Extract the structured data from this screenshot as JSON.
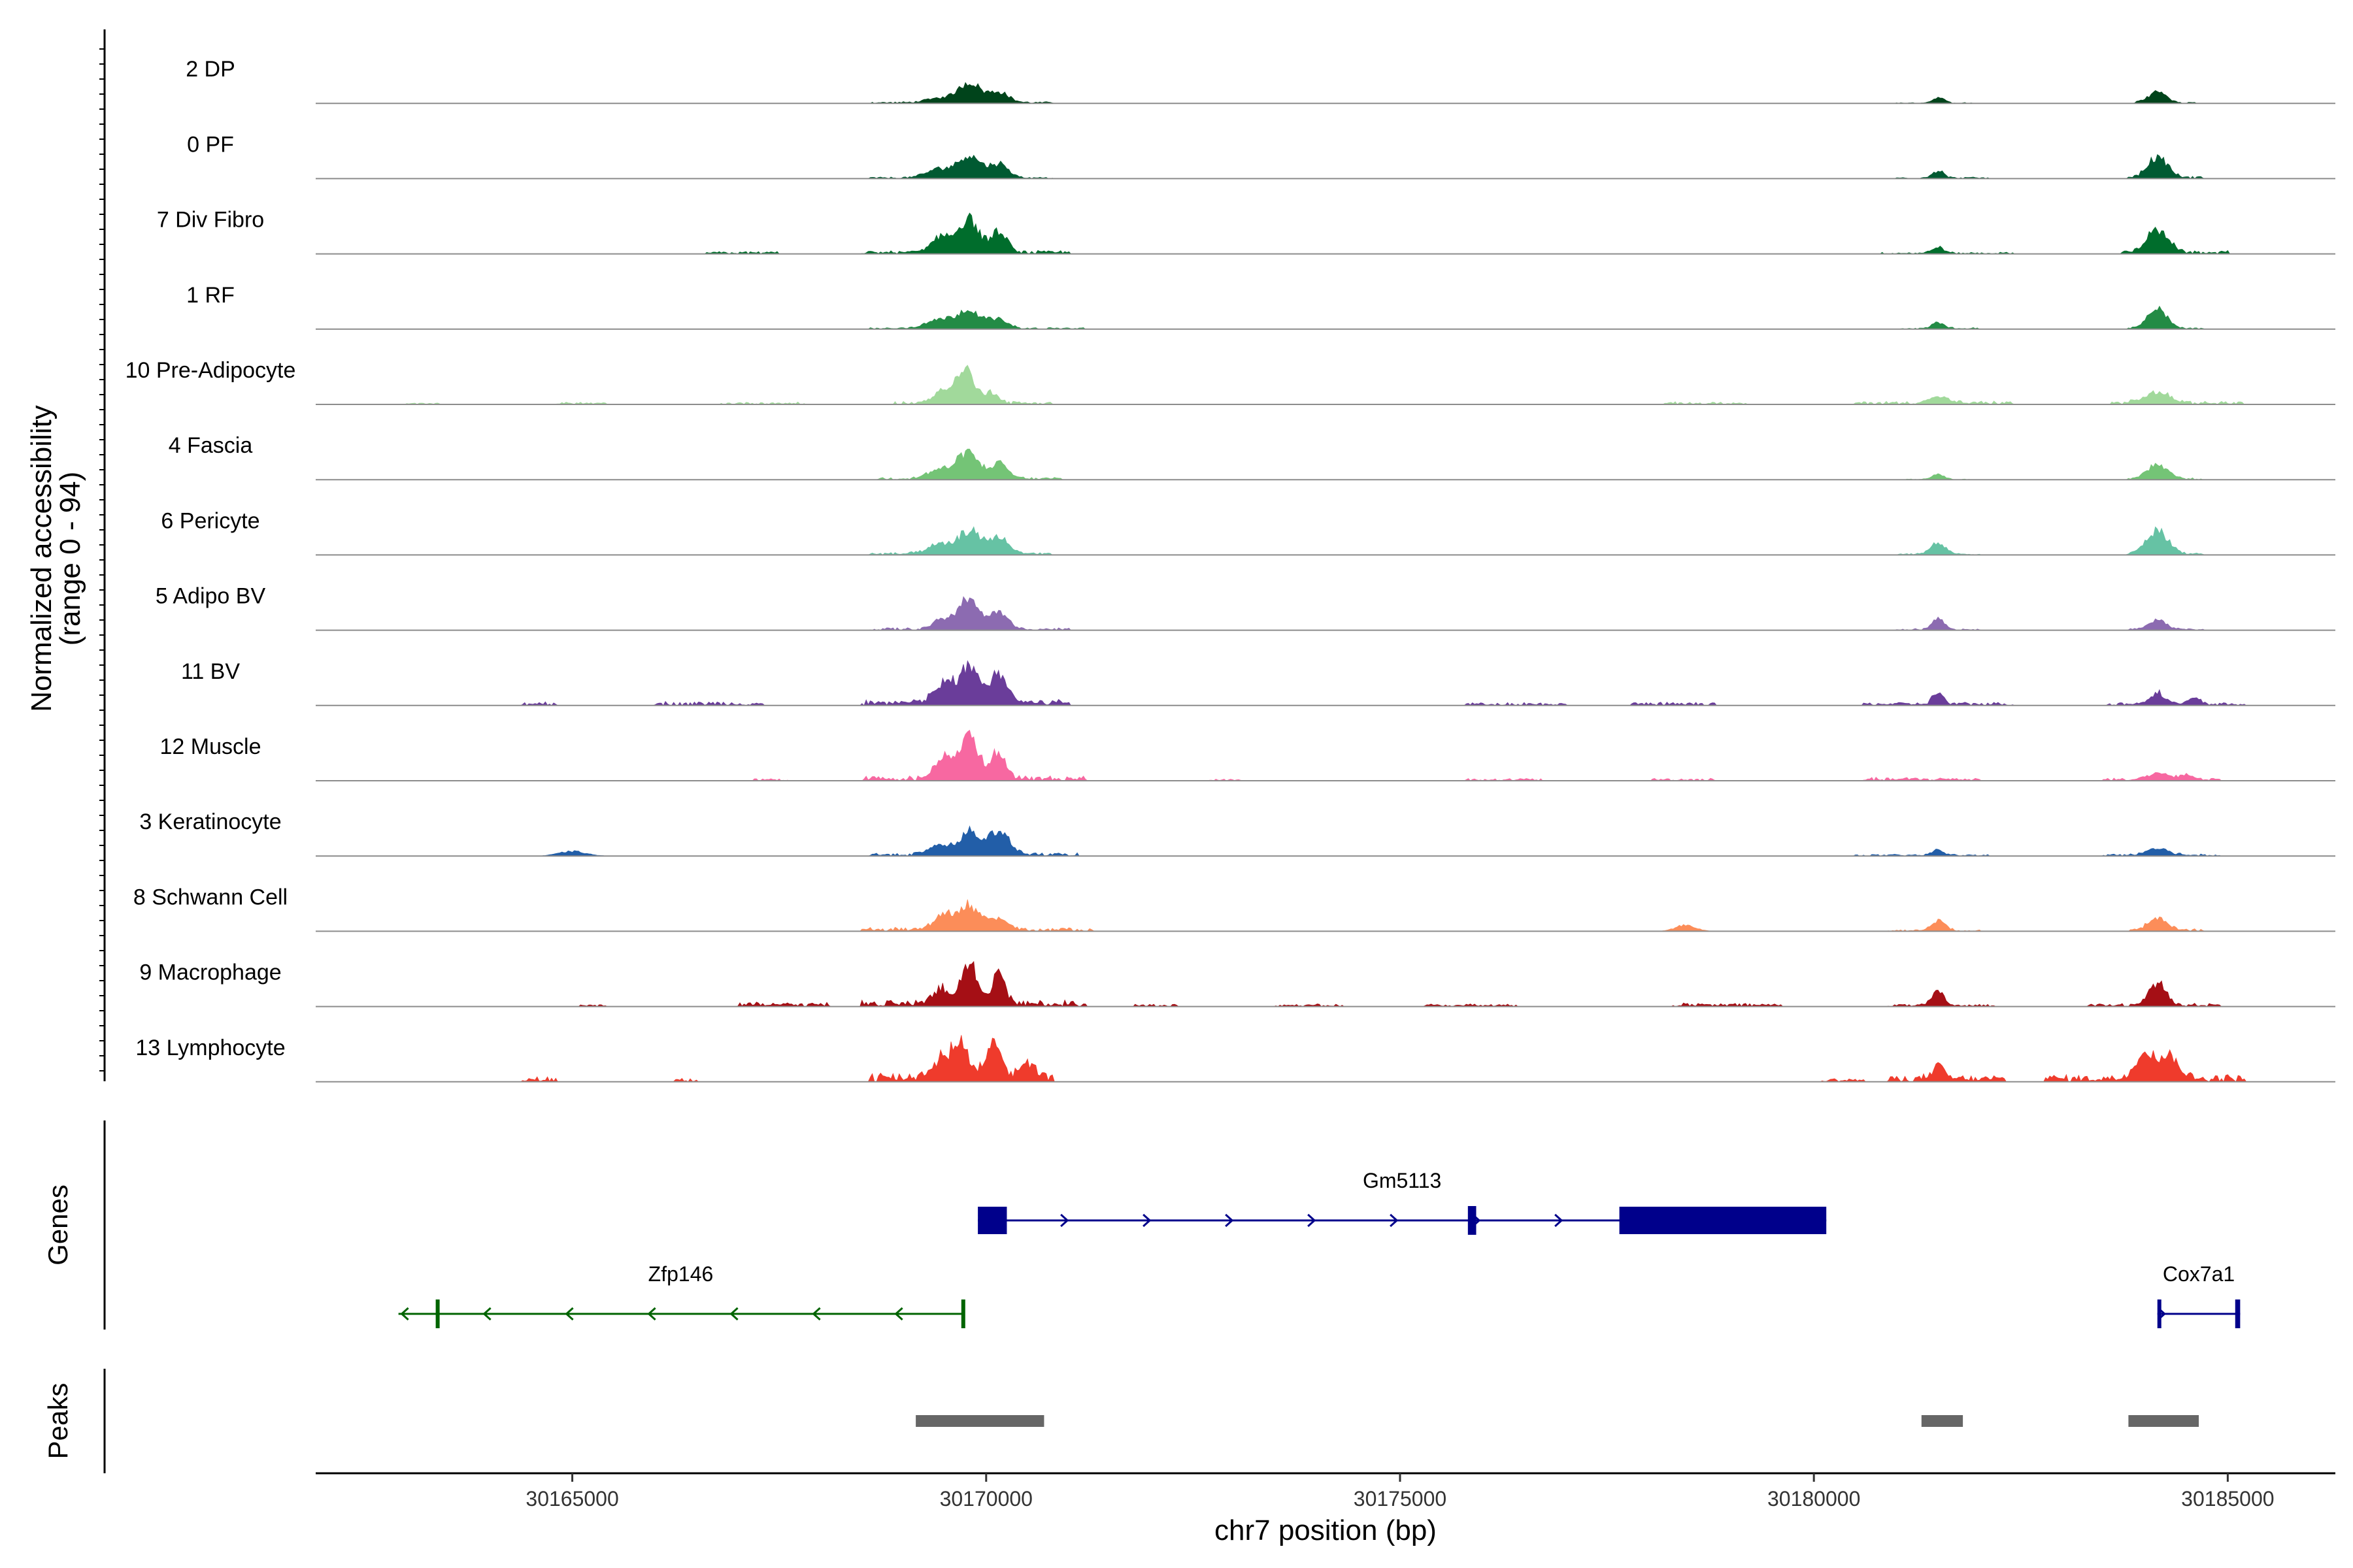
{
  "chart_data": {
    "type": "area",
    "title": "",
    "ylabel_line1": "Normalized accessibility",
    "ylabel_line2": "(range 0 - 94)",
    "yrange": [
      0,
      94
    ],
    "xlabel": "chr7 position (bp)",
    "xlim": [
      30161900,
      30186300
    ],
    "xticks": [
      {
        "value": 30165000,
        "label": "30165000"
      },
      {
        "value": 30170000,
        "label": "30170000"
      },
      {
        "value": 30175000,
        "label": "30175000"
      },
      {
        "value": 30180000,
        "label": "30180000"
      },
      {
        "value": 30185000,
        "label": "30185000"
      }
    ],
    "tracks": [
      {
        "name": "2 DP",
        "color": "#00441b",
        "peaks": [
          [
            30169450,
            6,
            160
          ],
          [
            30169800,
            26,
            130
          ],
          [
            30170150,
            14,
            120
          ],
          [
            30181500,
            7,
            70
          ],
          [
            30184150,
            14,
            110
          ]
        ],
        "noise": [
          [
            30168600,
            30170800,
            2
          ],
          [
            30181000,
            30181900,
            1
          ],
          [
            30183900,
            30184600,
            2
          ]
        ]
      },
      {
        "name": "0 PF",
        "color": "#005a32",
        "peaks": [
          [
            30169450,
            12,
            160
          ],
          [
            30169800,
            28,
            130
          ],
          [
            30170150,
            18,
            120
          ],
          [
            30181500,
            9,
            70
          ],
          [
            30184150,
            26,
            120
          ]
        ],
        "noise": [
          [
            30168600,
            30170800,
            2
          ],
          [
            30181000,
            30182100,
            2
          ],
          [
            30183800,
            30184700,
            3
          ]
        ]
      },
      {
        "name": "7 Div Fibro",
        "color": "#006d2c",
        "peaks": [
          [
            30169500,
            22,
            140
          ],
          [
            30169800,
            42,
            110
          ],
          [
            30170150,
            26,
            100
          ],
          [
            30181500,
            8,
            70
          ],
          [
            30184150,
            28,
            130
          ]
        ],
        "noise": [
          [
            30166600,
            30167500,
            3
          ],
          [
            30168500,
            30171000,
            4
          ],
          [
            30180800,
            30182400,
            2
          ],
          [
            30183700,
            30185000,
            4
          ]
        ]
      },
      {
        "name": "1 RF",
        "color": "#238b45",
        "peaks": [
          [
            30169450,
            12,
            170
          ],
          [
            30169800,
            24,
            130
          ],
          [
            30170150,
            12,
            110
          ],
          [
            30181500,
            8,
            70
          ],
          [
            30184150,
            24,
            120
          ]
        ],
        "noise": [
          [
            30168600,
            30171200,
            2
          ],
          [
            30181000,
            30182000,
            2
          ],
          [
            30183800,
            30184700,
            2
          ]
        ]
      },
      {
        "name": "10 Pre-Adipocyte",
        "color": "#a1d99b",
        "peaks": [
          [
            30169500,
            18,
            120
          ],
          [
            30169750,
            42,
            100
          ],
          [
            30170050,
            14,
            90
          ],
          [
            30181500,
            8,
            120
          ],
          [
            30184150,
            14,
            150
          ]
        ],
        "noise": [
          [
            30163000,
            30163400,
            2
          ],
          [
            30164800,
            30165400,
            3
          ],
          [
            30166800,
            30167800,
            3
          ],
          [
            30168900,
            30170800,
            4
          ],
          [
            30178200,
            30179200,
            3
          ],
          [
            30180500,
            30182400,
            4
          ],
          [
            30183600,
            30185200,
            4
          ]
        ]
      },
      {
        "name": "4 Fascia",
        "color": "#74c476",
        "peaks": [
          [
            30169450,
            12,
            150
          ],
          [
            30169780,
            34,
            120
          ],
          [
            30170150,
            20,
            110
          ],
          [
            30181500,
            7,
            70
          ],
          [
            30184150,
            18,
            130
          ]
        ],
        "noise": [
          [
            30168700,
            30170900,
            3
          ],
          [
            30181100,
            30181900,
            1
          ],
          [
            30183800,
            30184700,
            2
          ]
        ]
      },
      {
        "name": "6 Pericyte",
        "color": "#66c2a4",
        "peaks": [
          [
            30169450,
            12,
            150
          ],
          [
            30169800,
            30,
            120
          ],
          [
            30170150,
            22,
            120
          ],
          [
            30181500,
            14,
            90
          ],
          [
            30184150,
            30,
            130
          ]
        ],
        "noise": [
          [
            30168600,
            30170800,
            3
          ],
          [
            30181000,
            30182000,
            2
          ],
          [
            30183800,
            30184700,
            3
          ]
        ]
      },
      {
        "name": "5 Adipo BV",
        "color": "#8c6bb1",
        "peaks": [
          [
            30169500,
            14,
            120
          ],
          [
            30169800,
            42,
            110
          ],
          [
            30170150,
            22,
            110
          ],
          [
            30181500,
            16,
            70
          ],
          [
            30184150,
            12,
            110
          ]
        ],
        "noise": [
          [
            30168600,
            30171000,
            3
          ],
          [
            30181000,
            30182000,
            2
          ],
          [
            30183800,
            30184700,
            2
          ]
        ]
      },
      {
        "name": "11 BV",
        "color": "#6a3d9a",
        "peaks": [
          [
            30169500,
            26,
            120
          ],
          [
            30169800,
            46,
            110
          ],
          [
            30170150,
            40,
            110
          ],
          [
            30181500,
            16,
            60
          ],
          [
            30184150,
            14,
            100
          ],
          [
            30184600,
            8,
            60
          ]
        ],
        "noise": [
          [
            30164400,
            30164800,
            5
          ],
          [
            30166000,
            30167300,
            5
          ],
          [
            30168500,
            30171000,
            8
          ],
          [
            30175800,
            30177000,
            4
          ],
          [
            30177800,
            30178800,
            4
          ],
          [
            30180600,
            30182400,
            4
          ],
          [
            30183500,
            30185200,
            4
          ]
        ]
      },
      {
        "name": "12 Muscle",
        "color": "#f768a1",
        "peaks": [
          [
            30169500,
            30,
            110
          ],
          [
            30169800,
            62,
            100
          ],
          [
            30170150,
            34,
            90
          ],
          [
            30184150,
            8,
            110
          ],
          [
            30184500,
            6,
            80
          ]
        ],
        "noise": [
          [
            30167200,
            30167600,
            3
          ],
          [
            30168500,
            30171200,
            6
          ],
          [
            30172700,
            30173100,
            2
          ],
          [
            30175800,
            30176700,
            3
          ],
          [
            30178000,
            30178800,
            3
          ],
          [
            30180600,
            30182000,
            4
          ],
          [
            30183500,
            30184900,
            4
          ]
        ]
      },
      {
        "name": "3 Keratinocyte",
        "color": "#225ea8",
        "peaks": [
          [
            30165000,
            6,
            160
          ],
          [
            30169450,
            14,
            130
          ],
          [
            30169800,
            30,
            110
          ],
          [
            30170150,
            30,
            130
          ],
          [
            30181500,
            8,
            70
          ],
          [
            30184150,
            8,
            130
          ]
        ],
        "noise": [
          [
            30168600,
            30171100,
            4
          ],
          [
            30180500,
            30182200,
            2
          ],
          [
            30183500,
            30184900,
            3
          ]
        ]
      },
      {
        "name": "8 Schwann Cell",
        "color": "#fc8d59",
        "peaks": [
          [
            30169500,
            20,
            130
          ],
          [
            30169800,
            30,
            120
          ],
          [
            30170150,
            14,
            120
          ],
          [
            30178450,
            8,
            120
          ],
          [
            30181500,
            14,
            80
          ],
          [
            30184150,
            14,
            120
          ]
        ],
        "noise": [
          [
            30168500,
            30171300,
            5
          ],
          [
            30180900,
            30182000,
            2
          ],
          [
            30183800,
            30184700,
            3
          ]
        ]
      },
      {
        "name": "9 Macrophage",
        "color": "#a50f15",
        "peaks": [
          [
            30169450,
            20,
            110
          ],
          [
            30169800,
            52,
            90
          ],
          [
            30170150,
            38,
            80
          ],
          [
            30181500,
            18,
            70
          ],
          [
            30184150,
            30,
            100
          ]
        ],
        "noise": [
          [
            30165100,
            30165400,
            3
          ],
          [
            30167000,
            30168100,
            5
          ],
          [
            30168500,
            30171200,
            8
          ],
          [
            30171800,
            30172300,
            3
          ],
          [
            30173500,
            30174300,
            3
          ],
          [
            30175300,
            30176400,
            3
          ],
          [
            30178300,
            30179600,
            4
          ],
          [
            30180900,
            30182200,
            3
          ],
          [
            30183300,
            30184900,
            4
          ]
        ]
      },
      {
        "name": "13 Lymphocyte",
        "color": "#ef3b2c",
        "peaks": [
          [
            30169450,
            24,
            110
          ],
          [
            30169700,
            46,
            100
          ],
          [
            30170100,
            46,
            90
          ],
          [
            30170500,
            18,
            90
          ],
          [
            30181500,
            16,
            80
          ],
          [
            30184000,
            38,
            110
          ],
          [
            30184300,
            30,
            110
          ]
        ],
        "noise": [
          [
            30164400,
            30164800,
            6
          ],
          [
            30166200,
            30166500,
            5
          ],
          [
            30168600,
            30170800,
            12
          ],
          [
            30180100,
            30180600,
            5
          ],
          [
            30180900,
            30182300,
            8
          ],
          [
            30182800,
            30185200,
            9
          ]
        ]
      }
    ],
    "genes_panel_title": "Genes",
    "genes": [
      {
        "name": "Gm5113",
        "strand": "+",
        "start": 30169900,
        "end": 30180150,
        "color": "#00008b",
        "row": 1,
        "exons": [
          [
            30169900,
            30170250
          ],
          [
            30175820,
            30175920
          ],
          [
            30177650,
            30180150
          ]
        ]
      },
      {
        "name": "Zfp146",
        "strand": "-",
        "start": 30162900,
        "end": 30169720,
        "color": "#006400",
        "row": 2,
        "exons": [
          [
            30163350,
            30163370
          ],
          [
            30169700,
            30169720
          ]
        ]
      },
      {
        "name": "Cox7a1",
        "strand": "+",
        "start": 30184150,
        "end": 30185150,
        "color": "#00008b",
        "row": 2,
        "exons": [
          [
            30184150,
            30184180
          ],
          [
            30185090,
            30185150
          ]
        ]
      }
    ],
    "peaks_panel_title": "Peaks",
    "peak_color": "#666666",
    "peaks": [
      [
        30169150,
        30170700
      ],
      [
        30181300,
        30181800
      ],
      [
        30183800,
        30184650
      ]
    ]
  }
}
